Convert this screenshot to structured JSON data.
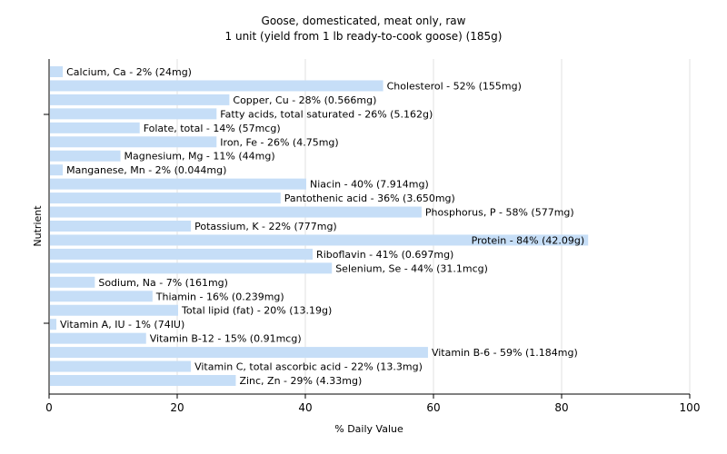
{
  "chart_data": {
    "type": "bar",
    "orientation": "horizontal",
    "title": "Goose, domesticated, meat only, raw",
    "subtitle": "1 unit (yield from 1 lb ready-to-cook goose) (185g)",
    "xlabel": "% Daily Value",
    "ylabel": "Nutrient",
    "xlim": [
      0,
      100
    ],
    "xticks": [
      0,
      20,
      40,
      60,
      80,
      100
    ],
    "grid": true,
    "bar_color": "#c6def7",
    "categories": [
      "Calcium, Ca",
      "Cholesterol",
      "Copper, Cu",
      "Fatty acids, total saturated",
      "Folate, total",
      "Iron, Fe",
      "Magnesium, Mg",
      "Manganese, Mn",
      "Niacin",
      "Pantothenic acid",
      "Phosphorus, P",
      "Potassium, K",
      "Protein",
      "Riboflavin",
      "Selenium, Se",
      "Sodium, Na",
      "Thiamin",
      "Total lipid (fat)",
      "Vitamin A, IU",
      "Vitamin B-12",
      "Vitamin B-6",
      "Vitamin C, total ascorbic acid",
      "Zinc, Zn"
    ],
    "values": [
      2,
      52,
      28,
      26,
      14,
      26,
      11,
      2,
      40,
      36,
      58,
      22,
      84,
      41,
      44,
      7,
      16,
      20,
      1,
      15,
      59,
      22,
      29
    ],
    "labels": [
      "Calcium, Ca - 2% (24mg)",
      "Cholesterol - 52% (155mg)",
      "Copper, Cu - 28% (0.566mg)",
      "Fatty acids, total saturated - 26% (5.162g)",
      "Folate, total - 14% (57mcg)",
      "Iron, Fe - 26% (4.75mg)",
      "Magnesium, Mg - 11% (44mg)",
      "Manganese, Mn - 2% (0.044mg)",
      "Niacin - 40% (7.914mg)",
      "Pantothenic acid - 36% (3.650mg)",
      "Phosphorus, P - 58% (577mg)",
      "Potassium, K - 22% (777mg)",
      "Protein - 84% (42.09g)",
      "Riboflavin - 41% (0.697mg)",
      "Selenium, Se - 44% (31.1mcg)",
      "Sodium, Na - 7% (161mg)",
      "Thiamin - 16% (0.239mg)",
      "Total lipid (fat) - 20% (13.19g)",
      "Vitamin A, IU - 1% (74IU)",
      "Vitamin B-12 - 15% (0.91mcg)",
      "Vitamin B-6 - 59% (1.184mg)",
      "Vitamin C, total ascorbic acid - 22% (13.3mg)",
      "Zinc, Zn - 29% (4.33mg)"
    ]
  }
}
